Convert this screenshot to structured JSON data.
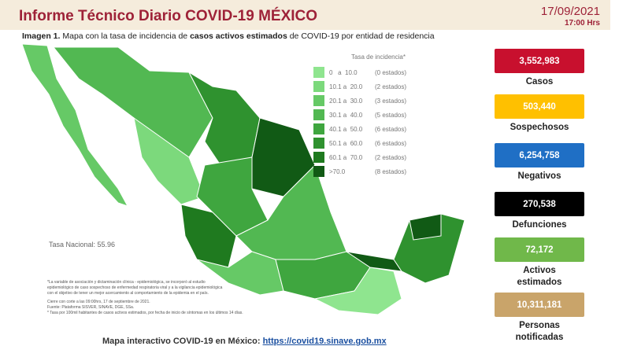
{
  "header": {
    "title": "Informe Técnico Diario COVID-19 MÉXICO",
    "date": "17/09/2021",
    "time": "17:00 Hrs"
  },
  "caption": {
    "lead": "Imagen 1.",
    "part1": "Mapa con la tasa de incidencia de",
    "bold": "casos activos estimados",
    "part2": "de COVID-19 por entidad de residencia"
  },
  "legend": {
    "title": "Tasa de incidencia*",
    "items": [
      {
        "range": "0   a  10.0",
        "count": "(0 estados)",
        "color": "#8fe58f"
      },
      {
        "range": "10.1 a  20.0",
        "count": "(2 estados)",
        "color": "#7cd97c"
      },
      {
        "range": "20.1 a  30.0",
        "count": "(3 estados)",
        "color": "#66c966"
      },
      {
        "range": "30.1 a  40.0",
        "count": "(5 estados)",
        "color": "#52b852"
      },
      {
        "range": "40.1 a  50.0",
        "count": "(6 estados)",
        "color": "#3fa63f"
      },
      {
        "range": "50.1 a  60.0",
        "count": "(6 estados)",
        "color": "#2f922f"
      },
      {
        "range": "60.1 a  70.0",
        "count": "(2 estados)",
        "color": "#1f7a1f"
      },
      {
        "range": ">70.0",
        "count": "(8 estados)",
        "color": "#115a15"
      }
    ]
  },
  "national_rate": "Tasa Nacional: 55.96",
  "notes": [
    "*La variable de asociación y dictaminación clínica - epidemiológica, se incorporó al estudio",
    "epidemiológico de caso sospechoso de enfermedad respiratoria viral y a la vigilancia epidemiológica",
    "con el objetivo de tener un mejor acercamiento al comportamiento de la epidemia en el país.",
    "Cierre con corte a las 09:00hrs, 17 de septiembre de 2021.",
    "Fuente: Plataforma SISVER, SINAVE, DGE, SSa.",
    "* Tasa por 100mil habitantes de casos activos estimados, por fecha de inicio de síntomas en los últimos 14 días."
  ],
  "footer": {
    "text": "Mapa interactivo COVID-19 en México:",
    "link": "https://covid19.sinave.gob.mx"
  },
  "stats": [
    {
      "value": "3,552,983",
      "label": "Casos",
      "color": "#c8102e"
    },
    {
      "value": "503,440",
      "label": "Sospechosos",
      "color": "#ffc000"
    },
    {
      "value": "6,254,758",
      "label": "Negativos",
      "color": "#1f6fc5"
    },
    {
      "value": "270,538",
      "label": "Defunciones",
      "color": "#000000"
    },
    {
      "value": "72,172",
      "label": "Activos estimados",
      "color": "#70b84a"
    },
    {
      "value": "10,311,181",
      "label": "Personas notificadas",
      "color": "#c9a46a"
    }
  ]
}
